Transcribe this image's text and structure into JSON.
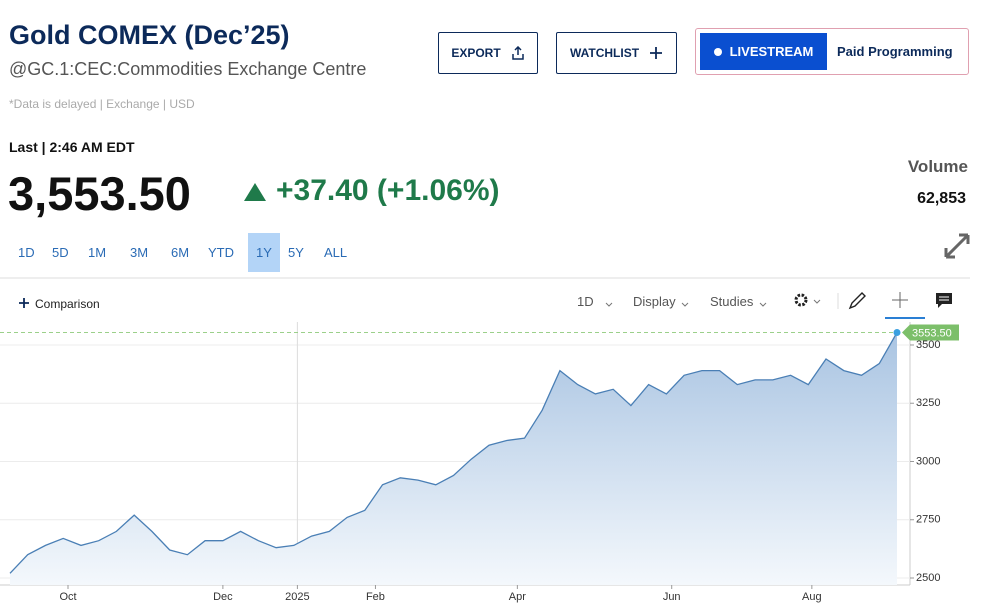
{
  "header": {
    "title": "Gold COMEX (Dec’25)",
    "symbol": "@GC.1:CEC:Commodities Exchange Centre",
    "note": "*Data is delayed | Exchange | USD"
  },
  "buttons": {
    "export": "EXPORT",
    "watchlist": "WATCHLIST",
    "livestream": "LIVESTREAM",
    "paid": "Paid Programming"
  },
  "quote": {
    "last_label": "Last | 2:46 AM EDT",
    "price": "3,553.50",
    "change": "+37.40 (+1.06%)",
    "volume_label": "Volume",
    "volume": "62,853"
  },
  "ranges": {
    "items": [
      "1D",
      "5D",
      "1M",
      "3M",
      "6M",
      "YTD",
      "1Y",
      "5Y",
      "ALL"
    ],
    "selected": 6
  },
  "toolbar": {
    "comparison": "Comparison",
    "interval": "1D",
    "display": "Display",
    "studies": "Studies"
  },
  "chart_data": {
    "type": "area",
    "color": "#4a7fb5",
    "values": [
      2520,
      2600,
      2640,
      2670,
      2640,
      2660,
      2700,
      2770,
      2700,
      2620,
      2600,
      2660,
      2660,
      2700,
      2660,
      2630,
      2640,
      2680,
      2700,
      2760,
      2790,
      2900,
      2930,
      2920,
      2900,
      2940,
      3010,
      3070,
      3090,
      3100,
      3220,
      3390,
      3330,
      3290,
      3310,
      3240,
      3330,
      3290,
      3370,
      3390,
      3390,
      3330,
      3350,
      3350,
      3370,
      3330,
      3440,
      3390,
      3370,
      3420,
      3553.5
    ],
    "last_value_label": "3553.50",
    "ylim": [
      2470,
      3590
    ],
    "yticks": [
      2500,
      2750,
      3000,
      3250,
      3500
    ],
    "xlim": [
      0,
      50
    ],
    "xticks": [
      {
        "value": 3.27,
        "label": "Oct"
      },
      {
        "value": 12,
        "label": "Dec"
      },
      {
        "value": 16.2,
        "label": "2025"
      },
      {
        "value": 20.6,
        "label": "Feb"
      },
      {
        "value": 28.6,
        "label": "Apr"
      },
      {
        "value": 37.3,
        "label": "Jun"
      },
      {
        "value": 45.2,
        "label": "Aug"
      }
    ],
    "grid": true
  }
}
